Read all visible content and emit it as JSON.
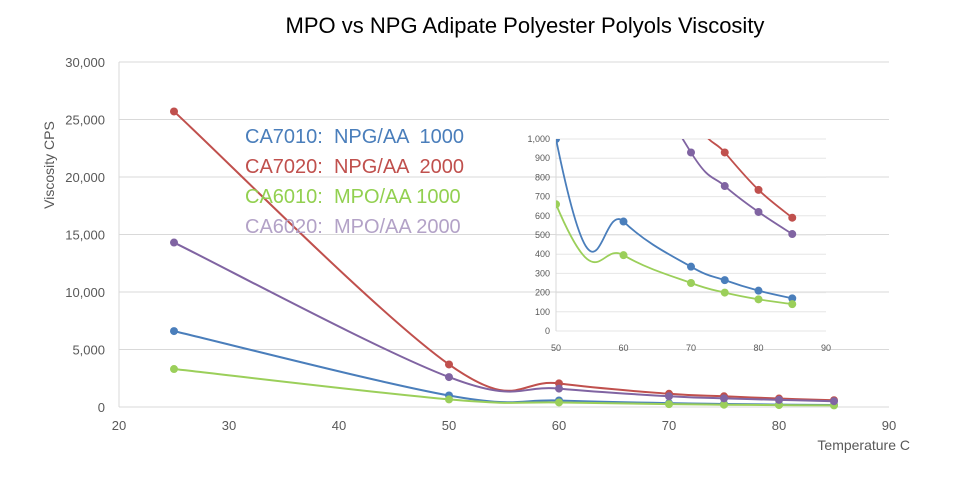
{
  "chart_data": [
    {
      "type": "line",
      "title": "MPO vs NPG Adipate Polyester Polyols Viscosity",
      "xlabel": "Temperature  C",
      "ylabel": "Viscosity CPS",
      "xlim": [
        20,
        90
      ],
      "ylim": [
        0,
        30000
      ],
      "xticks": [
        "20",
        "30",
        "40",
        "50",
        "60",
        "70",
        "80",
        "90"
      ],
      "yticks": [
        "0",
        "5,000",
        "10,000",
        "15,000",
        "20,000",
        "25,000",
        "30,000"
      ],
      "grid": true,
      "legend_position": "top-center",
      "x": [
        25,
        50,
        60,
        70,
        75,
        80,
        85
      ],
      "series": [
        {
          "name": "CA7010:  NPG/AA  1000",
          "color": "#4a7ebb",
          "values": [
            6600,
            1000,
            570,
            335,
            265,
            210,
            170
          ]
        },
        {
          "name": "CA7020:  NPG/AA  2000",
          "color": "#c0504d",
          "values": [
            25700,
            3700,
            2050,
            1150,
            930,
            735,
            590
          ]
        },
        {
          "name": "CA6010:  MPO/AA 1000",
          "color": "#9bcf5a",
          "values": [
            3300,
            660,
            395,
            250,
            200,
            165,
            140
          ]
        },
        {
          "name": "CA6020:  MPO/AA 2000",
          "color": "#8064a2",
          "values": [
            14300,
            2600,
            1600,
            930,
            755,
            620,
            505
          ]
        }
      ],
      "legend_colors": [
        "#4a7ebb",
        "#c0504d",
        "#92d050",
        "#b3a2c7"
      ]
    },
    {
      "type": "line",
      "xlim": [
        50,
        90
      ],
      "ylim": [
        0,
        1000
      ],
      "xticks": [
        "50",
        "60",
        "70",
        "80",
        "90"
      ],
      "yticks": [
        "0",
        "100",
        "200",
        "300",
        "400",
        "500",
        "600",
        "700",
        "800",
        "900",
        "1,000"
      ],
      "grid": true,
      "note_inset": "zoomed view of the same series",
      "x": [
        25,
        50,
        60,
        70,
        75,
        80,
        85
      ],
      "series_ref": "same as main chart"
    }
  ]
}
